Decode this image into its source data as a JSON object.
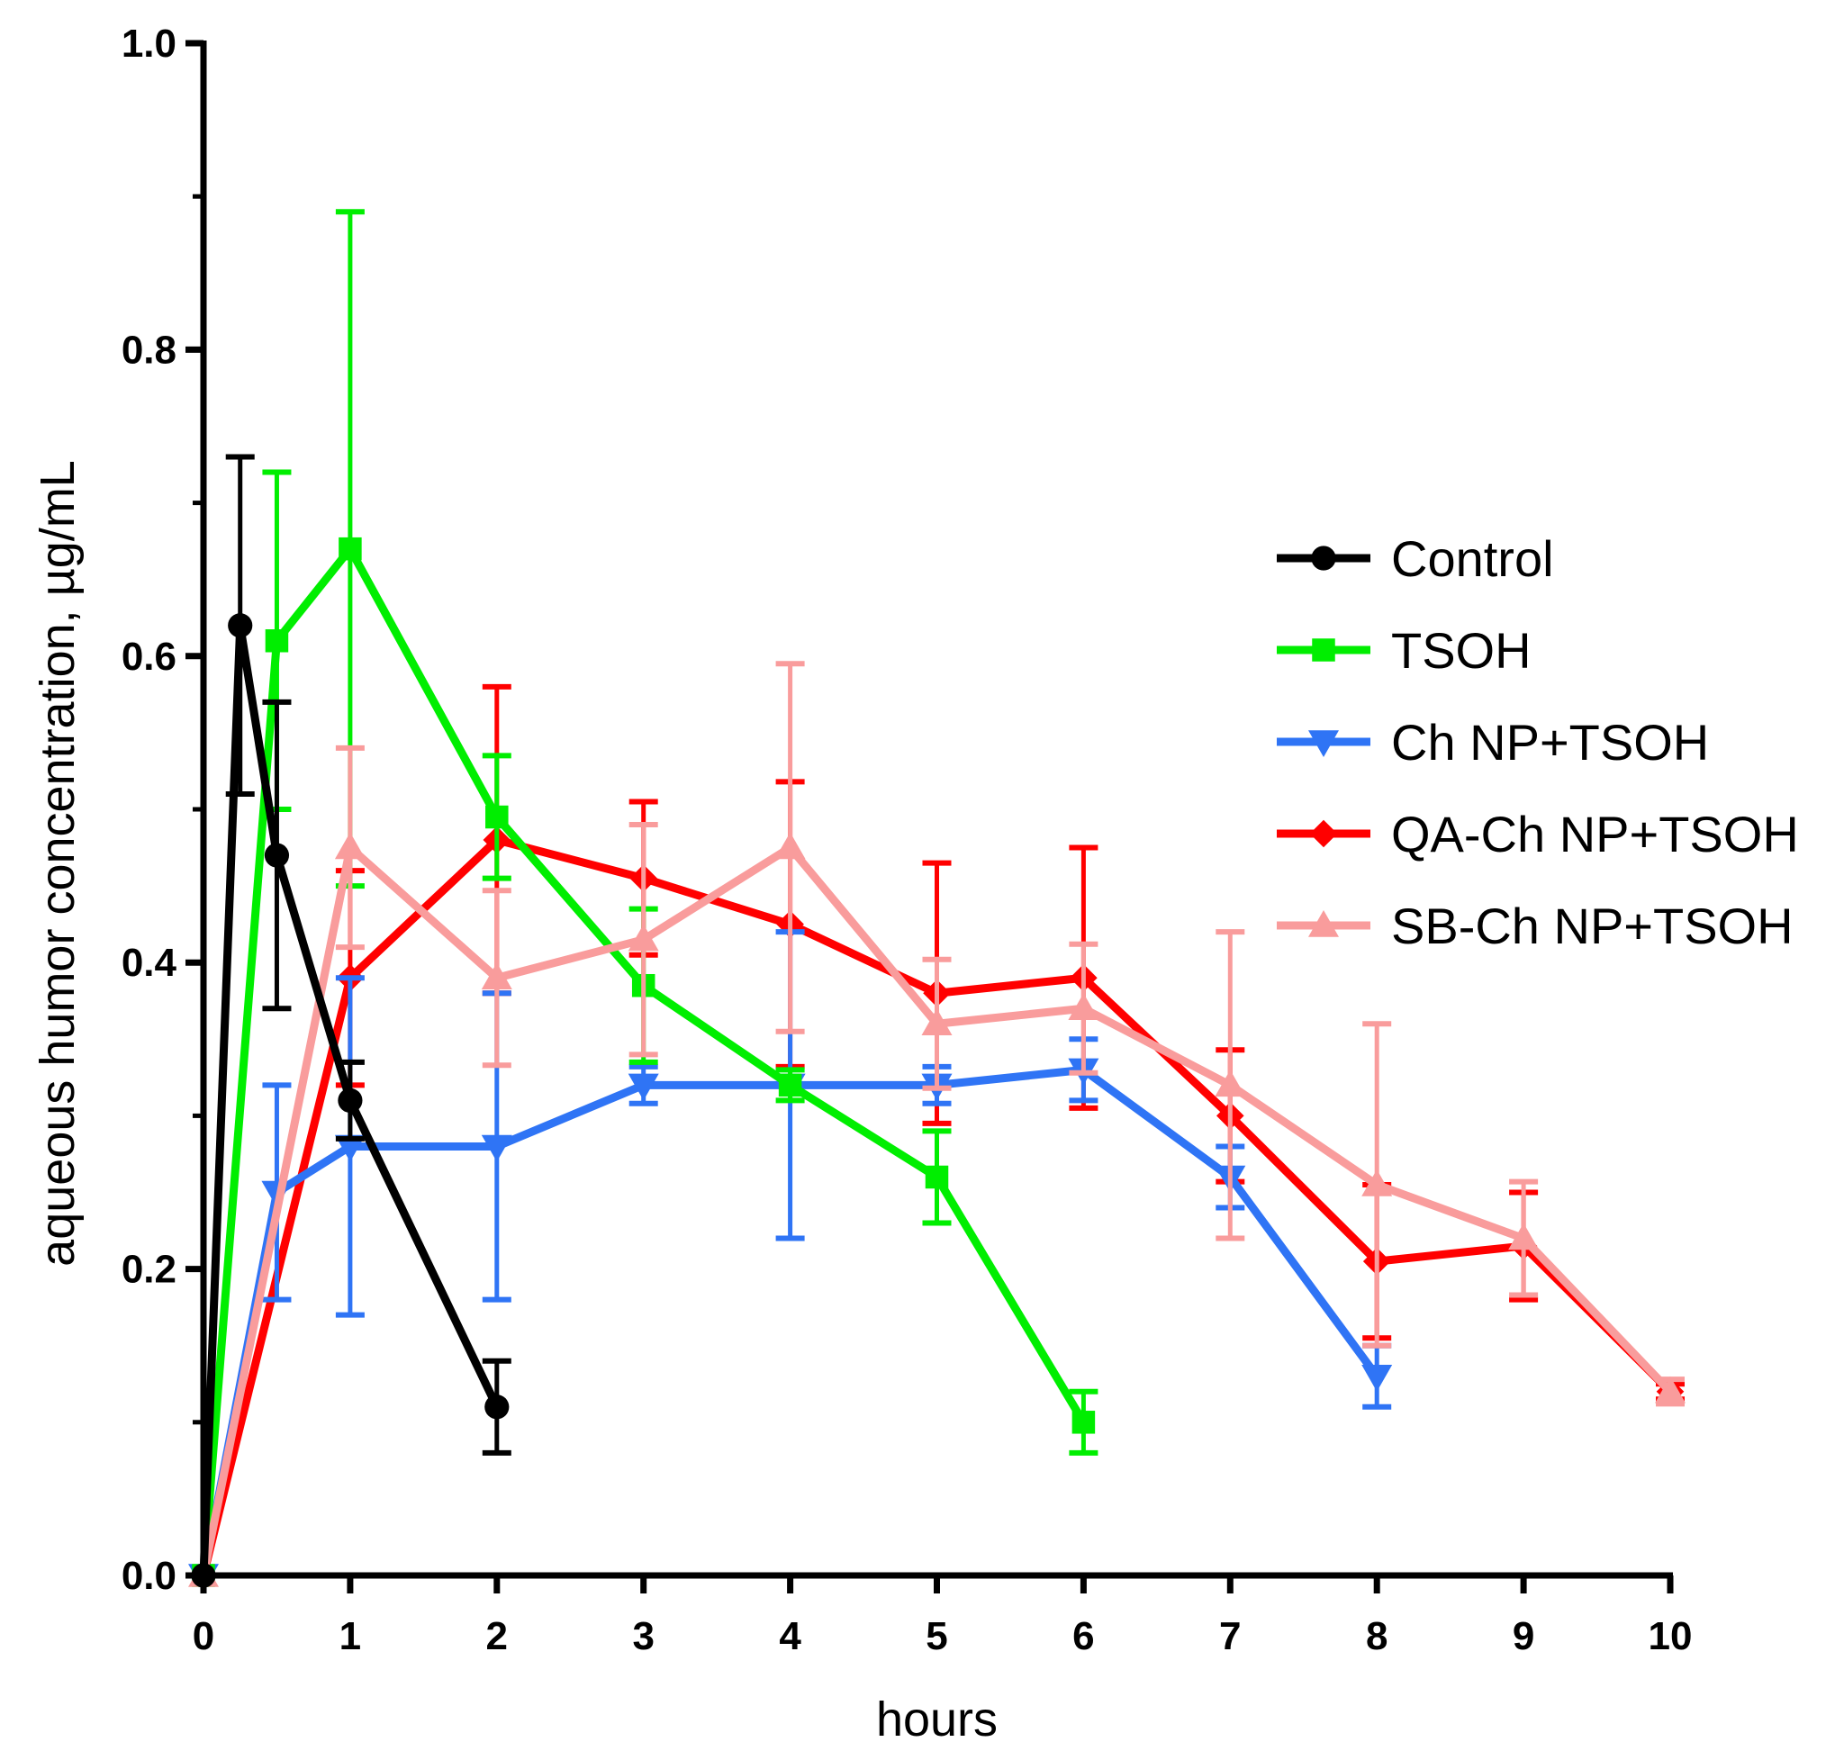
{
  "chart_data": {
    "type": "line",
    "title": "",
    "xlabel": "hours",
    "ylabel": "aqueous humor concentration, µg/mL",
    "xlim": [
      0,
      10
    ],
    "ylim": [
      0,
      1.0
    ],
    "x_ticks": [
      "0",
      "1",
      "2",
      "3",
      "4",
      "5",
      "6",
      "7",
      "8",
      "9",
      "10"
    ],
    "y_ticks": [
      "0.0",
      "0.2",
      "0.4",
      "0.6",
      "0.8",
      "1.0"
    ],
    "legend_position": "right",
    "series": [
      {
        "name": "Control",
        "color": "#000000",
        "marker": "circle",
        "x": [
          0,
          0.25,
          0.5,
          1,
          2
        ],
        "y": [
          0,
          0.62,
          0.47,
          0.31,
          0.11
        ],
        "err": [
          0,
          0.11,
          0.1,
          0.025,
          0.03
        ]
      },
      {
        "name": "TSOH",
        "color": "#00ee00",
        "marker": "square",
        "x": [
          0,
          0.5,
          1,
          2,
          3,
          4,
          5,
          6
        ],
        "y": [
          0,
          0.61,
          0.67,
          0.495,
          0.385,
          0.32,
          0.26,
          0.1
        ],
        "err": [
          0,
          0.11,
          0.22,
          0.04,
          0.05,
          0.01,
          0.03,
          0.02
        ]
      },
      {
        "name": "Ch NP+TSOH",
        "color": "#2f74f5",
        "marker": "triangle-down",
        "x": [
          0,
          0.5,
          1,
          2,
          3,
          4,
          5,
          6,
          7,
          8
        ],
        "y": [
          0,
          0.25,
          0.28,
          0.28,
          0.32,
          0.32,
          0.32,
          0.33,
          0.26,
          0.13
        ],
        "err": [
          0,
          0.07,
          0.11,
          0.1,
          0.012,
          0.1,
          0.012,
          0.02,
          0.02,
          0.02
        ]
      },
      {
        "name": "QA-Ch NP+TSOH",
        "color": "#ff0000",
        "marker": "diamond",
        "x": [
          0,
          1,
          2,
          3,
          4,
          5,
          6,
          7,
          8,
          9,
          10
        ],
        "y": [
          0,
          0.39,
          0.48,
          0.455,
          0.425,
          0.38,
          0.39,
          0.3,
          0.205,
          0.215,
          0.12
        ],
        "err": [
          0,
          0.07,
          0.1,
          0.05,
          0.093,
          0.085,
          0.085,
          0.043,
          0.05,
          0.035,
          0.005
        ]
      },
      {
        "name": "SB-Ch NP+TSOH",
        "color": "#f99c9c",
        "marker": "triangle-up",
        "x": [
          0,
          1,
          2,
          3,
          4,
          5,
          6,
          7,
          8,
          9,
          10
        ],
        "y": [
          0,
          0.475,
          0.39,
          0.415,
          0.475,
          0.36,
          0.37,
          0.32,
          0.255,
          0.22,
          0.12
        ],
        "err": [
          0,
          0.065,
          0.057,
          0.075,
          0.12,
          0.042,
          0.042,
          0.1,
          0.105,
          0.037,
          0.008
        ]
      }
    ]
  }
}
